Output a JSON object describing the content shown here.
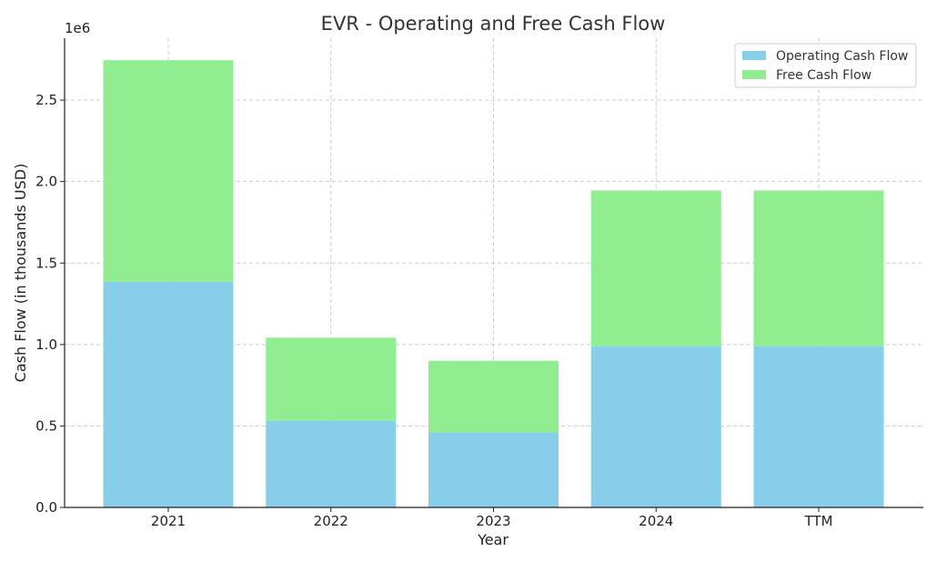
{
  "chart_data": {
    "type": "bar",
    "stacked": true,
    "title": "EVR - Operating and Free Cash Flow",
    "xlabel": "Year",
    "ylabel": "Cash Flow (in thousands USD)",
    "y_scale_label": "1e6",
    "categories": [
      "2021",
      "2022",
      "2023",
      "2024",
      "TTM"
    ],
    "series": [
      {
        "name": "Operating Cash Flow",
        "color": "#87ceeb",
        "values": [
          1385000,
          532000,
          460000,
          990000,
          990000
        ]
      },
      {
        "name": "Free Cash Flow",
        "color": "#90ee90",
        "values": [
          1360000,
          510000,
          440000,
          955000,
          955000
        ]
      }
    ],
    "y_ticks": [
      0,
      500000,
      1000000,
      1500000,
      2000000,
      2500000
    ],
    "y_tick_labels": [
      "0.0",
      "0.5",
      "1.0",
      "1.5",
      "2.0",
      "2.5"
    ],
    "ylim": [
      0,
      2880000
    ],
    "grid": true,
    "legend_position": "top-right"
  }
}
